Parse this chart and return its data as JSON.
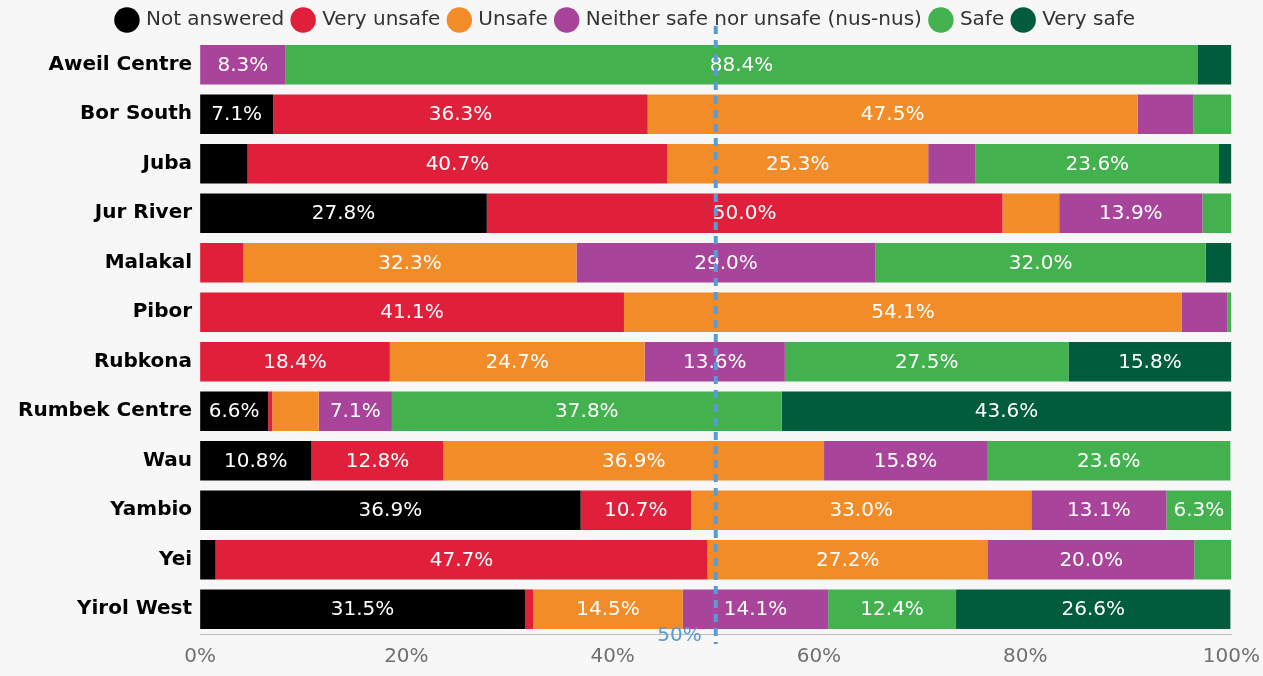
{
  "chart_data": {
    "type": "bar",
    "orientation": "horizontal",
    "stacked": true,
    "categories": [
      "Aweil Centre",
      "Bor South",
      "Juba",
      "Jur River",
      "Malakal",
      "Pibor",
      "Rubkona",
      "Rumbek Centre",
      "Wau",
      "Yambio",
      "Yei",
      "Yirol West"
    ],
    "series": [
      {
        "name": "Not answered",
        "color": "#000000",
        "values": [
          0,
          7.1,
          4.6,
          27.8,
          0,
          0,
          0,
          6.6,
          10.8,
          36.9,
          1.5,
          31.5
        ],
        "value_labels": [
          null,
          "7.1%",
          null,
          "27.8%",
          null,
          null,
          null,
          "6.6%",
          "10.8%",
          "36.9%",
          null,
          "31.5%"
        ]
      },
      {
        "name": "Very unsafe",
        "color": "#e0203a",
        "values": [
          0,
          36.3,
          40.7,
          50.0,
          4.2,
          41.1,
          18.4,
          0.4,
          12.8,
          10.7,
          47.7,
          0.8
        ],
        "value_labels": [
          null,
          "36.3%",
          "40.7%",
          "50.0%",
          null,
          "41.1%",
          "18.4%",
          null,
          "12.8%",
          "10.7%",
          "47.7%",
          null
        ]
      },
      {
        "name": "Unsafe",
        "color": "#f28c28",
        "values": [
          0,
          47.5,
          25.3,
          5.5,
          32.3,
          54.1,
          24.7,
          4.5,
          36.9,
          33.0,
          27.2,
          14.5
        ],
        "value_labels": [
          null,
          "47.5%",
          "25.3%",
          null,
          "32.3%",
          "54.1%",
          "24.7%",
          null,
          "36.9%",
          "33.0%",
          "27.2%",
          "14.5%"
        ]
      },
      {
        "name": "Neither safe nor unsafe (nus-nus)",
        "color": "#a8449a",
        "values": [
          8.3,
          5.4,
          4.6,
          13.9,
          29.0,
          4.4,
          13.6,
          7.1,
          15.8,
          13.1,
          20.0,
          14.1
        ],
        "value_labels": [
          "8.3%",
          null,
          null,
          "13.9%",
          "29.0%",
          null,
          "13.6%",
          "7.1%",
          "15.8%",
          "13.1%",
          "20.0%",
          "14.1%"
        ]
      },
      {
        "name": "Safe",
        "color": "#42b14e",
        "values": [
          88.4,
          3.7,
          23.6,
          2.8,
          32.0,
          0.4,
          27.5,
          37.8,
          23.6,
          6.3,
          3.6,
          12.4
        ],
        "value_labels": [
          "88.4%",
          null,
          "23.6%",
          null,
          "32.0%",
          null,
          "27.5%",
          "37.8%",
          "23.6%",
          "6.3%",
          null,
          "12.4%"
        ]
      },
      {
        "name": "Very safe",
        "color": "#005c3c",
        "values": [
          3.3,
          0,
          1.2,
          0,
          2.5,
          0,
          15.8,
          43.6,
          0,
          0,
          0,
          26.6
        ],
        "value_labels": [
          null,
          null,
          null,
          null,
          null,
          null,
          "15.8%",
          "43.6%",
          null,
          null,
          null,
          "26.6%"
        ]
      }
    ],
    "xlim": [
      0,
      100
    ],
    "xticks": [
      {
        "value": 0,
        "label": "0%"
      },
      {
        "value": 20,
        "label": "20%"
      },
      {
        "value": 40,
        "label": "40%"
      },
      {
        "value": 60,
        "label": "60%"
      },
      {
        "value": 80,
        "label": "80%"
      },
      {
        "value": 100,
        "label": "100%"
      }
    ],
    "ref_lines": [
      {
        "axis": "x",
        "value": 50,
        "label": "50%",
        "color": "#5b9bd5",
        "line_style": "dashed"
      }
    ],
    "legend": "top",
    "grid": false
  }
}
